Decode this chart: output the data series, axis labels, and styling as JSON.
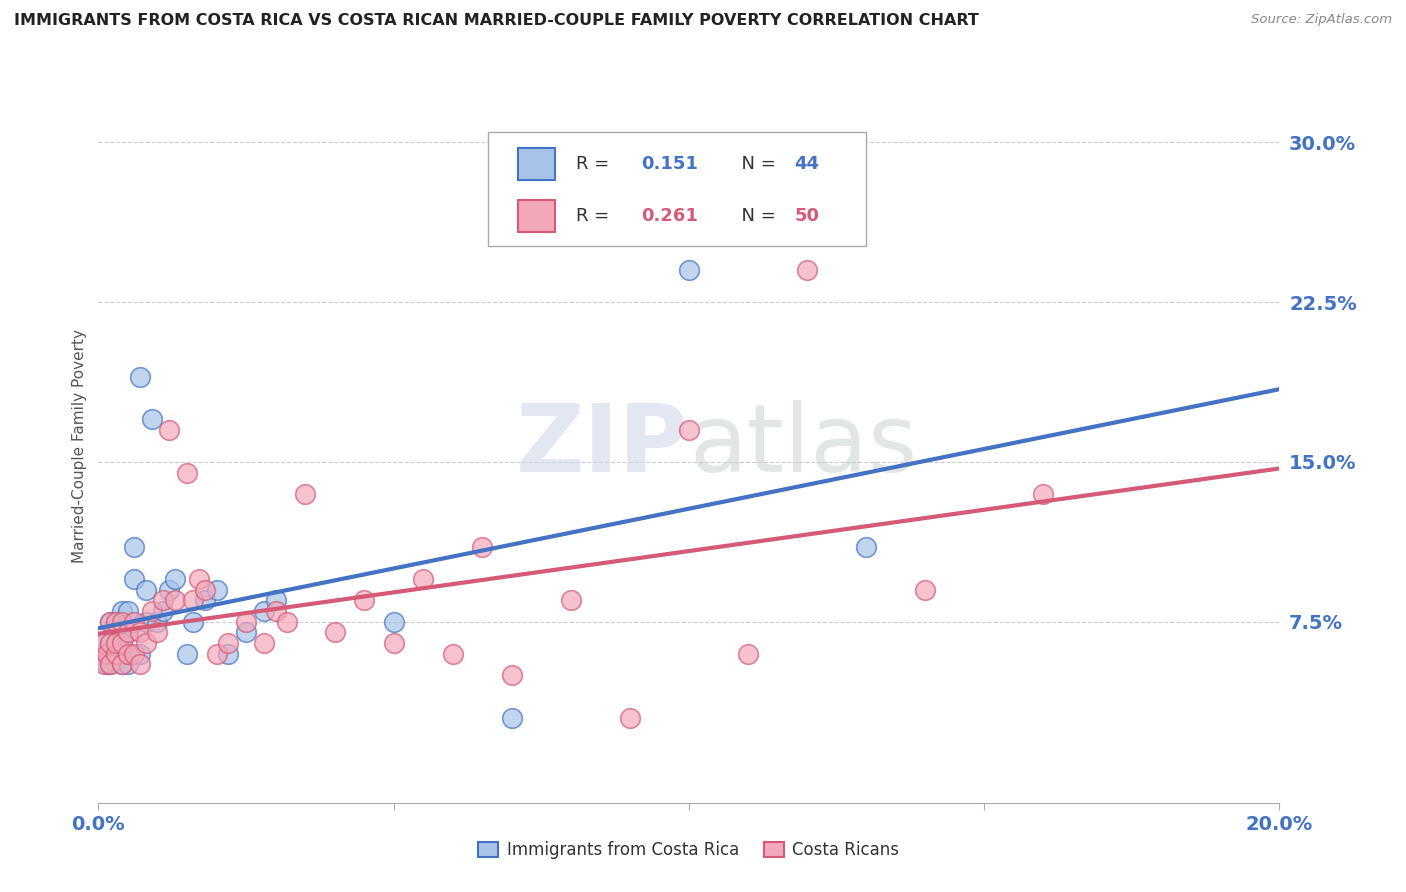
{
  "title": "IMMIGRANTS FROM COSTA RICA VS COSTA RICAN MARRIED-COUPLE FAMILY POVERTY CORRELATION CHART",
  "source": "Source: ZipAtlas.com",
  "ylabel": "Married-Couple Family Poverty",
  "yticks": [
    "7.5%",
    "15.0%",
    "22.5%",
    "30.0%"
  ],
  "ytick_vals": [
    0.075,
    0.15,
    0.225,
    0.3
  ],
  "xlim": [
    0.0,
    0.2
  ],
  "ylim": [
    -0.01,
    0.325
  ],
  "legend_r1": "0.151",
  "legend_n1": "44",
  "legend_r2": "0.261",
  "legend_n2": "50",
  "color_blue": "#a8c4e8",
  "color_pink": "#f2a8b8",
  "color_blue_dark": "#4472C4",
  "color_pink_dark": "#d45a78",
  "watermark_color": "#d0d8e8",
  "blue_x": [
    0.0005,
    0.001,
    0.001,
    0.0015,
    0.002,
    0.002,
    0.002,
    0.0025,
    0.003,
    0.003,
    0.003,
    0.003,
    0.0035,
    0.004,
    0.004,
    0.004,
    0.004,
    0.005,
    0.005,
    0.005,
    0.005,
    0.006,
    0.006,
    0.007,
    0.007,
    0.008,
    0.008,
    0.009,
    0.01,
    0.011,
    0.012,
    0.013,
    0.015,
    0.016,
    0.018,
    0.02,
    0.022,
    0.025,
    0.028,
    0.03,
    0.05,
    0.07,
    0.1,
    0.13
  ],
  "blue_y": [
    0.06,
    0.06,
    0.065,
    0.055,
    0.055,
    0.065,
    0.075,
    0.06,
    0.06,
    0.065,
    0.07,
    0.075,
    0.06,
    0.055,
    0.065,
    0.07,
    0.08,
    0.055,
    0.06,
    0.07,
    0.08,
    0.095,
    0.11,
    0.19,
    0.06,
    0.075,
    0.09,
    0.17,
    0.075,
    0.08,
    0.09,
    0.095,
    0.06,
    0.075,
    0.085,
    0.09,
    0.06,
    0.07,
    0.08,
    0.085,
    0.075,
    0.03,
    0.24,
    0.11
  ],
  "pink_x": [
    0.0005,
    0.001,
    0.001,
    0.0015,
    0.002,
    0.002,
    0.002,
    0.003,
    0.003,
    0.003,
    0.004,
    0.004,
    0.004,
    0.005,
    0.005,
    0.006,
    0.006,
    0.007,
    0.007,
    0.008,
    0.009,
    0.01,
    0.011,
    0.012,
    0.013,
    0.015,
    0.016,
    0.017,
    0.018,
    0.02,
    0.022,
    0.025,
    0.028,
    0.03,
    0.032,
    0.035,
    0.04,
    0.045,
    0.05,
    0.055,
    0.06,
    0.065,
    0.07,
    0.08,
    0.09,
    0.1,
    0.11,
    0.12,
    0.14,
    0.16
  ],
  "pink_y": [
    0.06,
    0.055,
    0.065,
    0.06,
    0.055,
    0.065,
    0.075,
    0.06,
    0.065,
    0.075,
    0.055,
    0.065,
    0.075,
    0.06,
    0.07,
    0.06,
    0.075,
    0.055,
    0.07,
    0.065,
    0.08,
    0.07,
    0.085,
    0.165,
    0.085,
    0.145,
    0.085,
    0.095,
    0.09,
    0.06,
    0.065,
    0.075,
    0.065,
    0.08,
    0.075,
    0.135,
    0.07,
    0.085,
    0.065,
    0.095,
    0.06,
    0.11,
    0.05,
    0.085,
    0.03,
    0.165,
    0.06,
    0.24,
    0.09,
    0.135
  ]
}
